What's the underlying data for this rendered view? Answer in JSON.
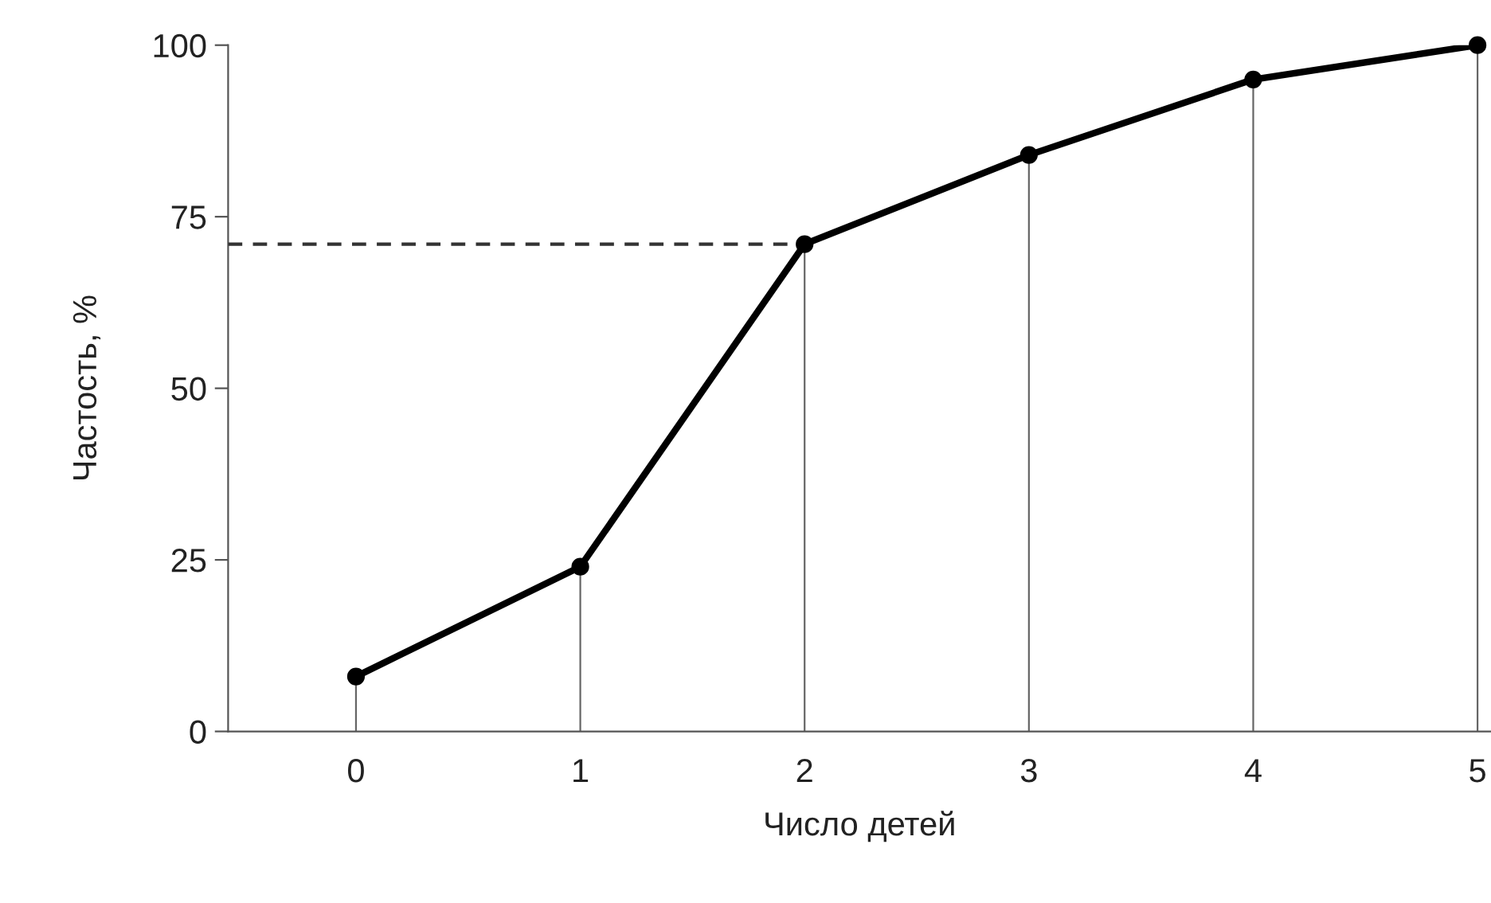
{
  "chart_data": {
    "type": "line",
    "xlabel": "Число детей",
    "ylabel": "Частость, %",
    "x": [
      0,
      1,
      2,
      3,
      4,
      5
    ],
    "xlim": [
      -0.57,
      5.06
    ],
    "xticks": [
      0,
      1,
      2,
      3,
      4,
      5
    ],
    "ylim": [
      0,
      100
    ],
    "yticks": [
      0,
      25,
      50,
      75,
      100
    ],
    "grid": false,
    "legend": false,
    "series": [
      {
        "color": "#000000",
        "marker": "none",
        "line_style": "solid",
        "values": [
          8,
          24,
          71,
          84,
          95,
          100
        ]
      },
      {
        "type": "lollipop",
        "color": "#000000",
        "marker": "circle",
        "values": [
          8,
          24,
          71,
          84,
          95,
          100
        ]
      },
      {
        "type": "line",
        "color": "#333333",
        "marker": "none",
        "line_style": "dashed",
        "x": [
          -0.57,
          2
        ],
        "values": [
          71,
          71
        ]
      }
    ]
  }
}
